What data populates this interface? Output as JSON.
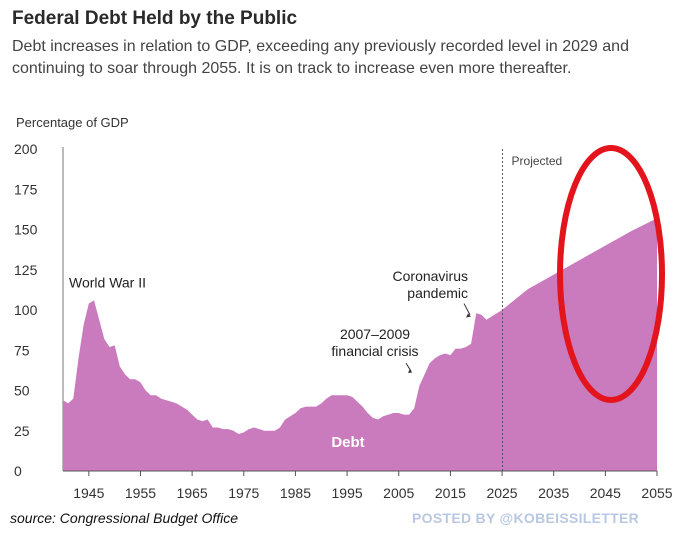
{
  "title": "Federal Debt Held by the Public",
  "subtitle": "Debt increases in relation to GDP, exceeding any previously recorded level in 2029 and continuing to soar through 2055. It is on track to increase even more thereafter.",
  "ylabel": "Percentage of GDP",
  "source": "source: Congressional Budget Office",
  "watermark": "POSTED BY @KOBEISSILETTER",
  "colors": {
    "area": "#c97bbd",
    "highlight_ellipse": "#e3141c",
    "projection_line": "#555555"
  },
  "annotations": {
    "ww2": "World War II",
    "coronavirus": [
      "Coronavirus",
      "pandemic"
    ],
    "financial_crisis": [
      "2007–2009",
      "financial crisis"
    ],
    "projected": "Projected",
    "series_label": "Debt"
  },
  "chart_data": {
    "type": "area",
    "title": "Federal Debt Held by the Public",
    "ylabel": "Percentage of GDP",
    "xlim": [
      1940,
      2055
    ],
    "ylim": [
      0,
      200
    ],
    "yticks": [
      0,
      25,
      50,
      75,
      100,
      125,
      150,
      175,
      200
    ],
    "xticks": [
      1945,
      1955,
      1965,
      1975,
      1985,
      1995,
      2005,
      2015,
      2025,
      2035,
      2045,
      2055
    ],
    "projection_start": 2025,
    "series": [
      {
        "name": "Debt",
        "x": [
          1940,
          1941,
          1942,
          1943,
          1944,
          1945,
          1946,
          1947,
          1948,
          1949,
          1950,
          1951,
          1952,
          1953,
          1954,
          1955,
          1956,
          1957,
          1958,
          1959,
          1960,
          1961,
          1962,
          1963,
          1964,
          1965,
          1966,
          1967,
          1968,
          1969,
          1970,
          1971,
          1972,
          1973,
          1974,
          1975,
          1976,
          1977,
          1978,
          1979,
          1980,
          1981,
          1982,
          1983,
          1984,
          1985,
          1986,
          1987,
          1988,
          1989,
          1990,
          1991,
          1992,
          1993,
          1994,
          1995,
          1996,
          1997,
          1998,
          1999,
          2000,
          2001,
          2002,
          2003,
          2004,
          2005,
          2006,
          2007,
          2008,
          2009,
          2010,
          2011,
          2012,
          2013,
          2014,
          2015,
          2016,
          2017,
          2018,
          2019,
          2020,
          2021,
          2022,
          2023,
          2024,
          2025,
          2030,
          2035,
          2040,
          2045,
          2050,
          2055
        ],
        "y": [
          44,
          42,
          45,
          70,
          91,
          104,
          106,
          94,
          82,
          77,
          78,
          65,
          60,
          57,
          57,
          55,
          50,
          47,
          47,
          45,
          44,
          43,
          42,
          40,
          38,
          35,
          32,
          31,
          32,
          27,
          27,
          26,
          26,
          25,
          23,
          24,
          26,
          27,
          26,
          25,
          25,
          25,
          27,
          32,
          34,
          36,
          39,
          40,
          40,
          40,
          42,
          45,
          47,
          47,
          47,
          47,
          46,
          43,
          40,
          36,
          33,
          32,
          34,
          35,
          36,
          36,
          35,
          35,
          39,
          53,
          60,
          67,
          70,
          72,
          73,
          72,
          76,
          76,
          77,
          79,
          98,
          97,
          94,
          96,
          98,
          100,
          113,
          122,
          131,
          140,
          149,
          157
        ]
      }
    ]
  }
}
